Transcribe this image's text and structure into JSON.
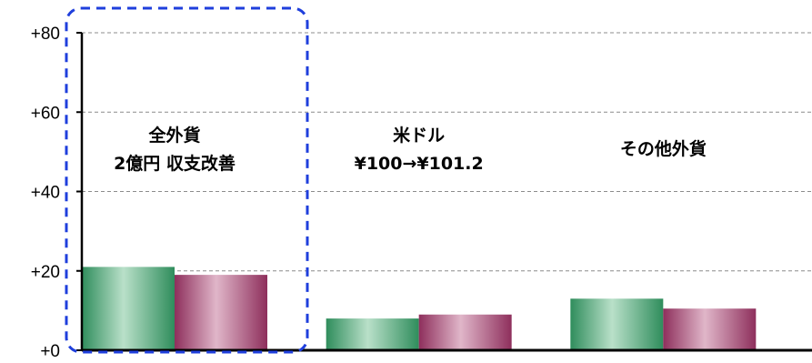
{
  "chart_data": {
    "type": "bar",
    "categories": [
      {
        "lines": [
          "全外貨",
          "2億円 収支改善"
        ]
      },
      {
        "lines": [
          "米ドル",
          "¥100→¥101.2"
        ]
      },
      {
        "lines": [
          "その他外貨"
        ]
      }
    ],
    "series": [
      {
        "values": [
          21,
          8,
          13
        ],
        "color": "#3e9a6a"
      },
      {
        "values": [
          19,
          9,
          10.5
        ],
        "color": "#9a3e6a"
      }
    ],
    "yticks": [
      "+0",
      "+20",
      "+40",
      "+60",
      "+80"
    ],
    "ylim": [
      0,
      80
    ],
    "grid": true,
    "highlight_category": 0,
    "highlight_color": "#1f3fdc"
  }
}
